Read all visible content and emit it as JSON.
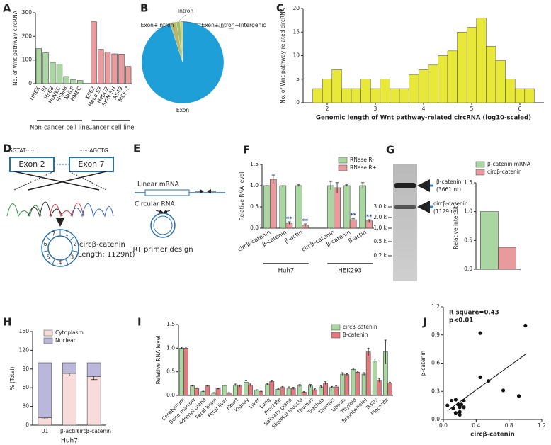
{
  "chart_data": [
    {
      "type": "bar",
      "label": "A",
      "ylabel": "No. of Wnt pathway circRNA",
      "categories": [
        "NHEK",
        "BJ",
        "Hs68",
        "HUVEC",
        "HSMM",
        "NHLF",
        "HMEC",
        null,
        "K562",
        "HeLa S3",
        "HepG2",
        "SK-N-SH",
        "A549",
        "MCF-7"
      ],
      "series": [
        {
          "color": "#a9d6a1",
          "values": [
            148,
            130,
            90,
            82,
            30,
            16,
            13,
            null,
            null,
            null,
            null,
            null,
            null,
            null
          ]
        },
        {
          "color": "#e89a9c",
          "values": [
            null,
            null,
            null,
            null,
            null,
            null,
            null,
            null,
            262,
            145,
            133,
            126,
            125,
            73
          ]
        }
      ],
      "groups": [
        "Non-cancer cell line",
        "Cancer cell line"
      ],
      "ylim": [
        0,
        300
      ],
      "yticks": [
        0,
        100,
        200,
        300
      ]
    },
    {
      "type": "pie",
      "label": "B",
      "categories": [
        "Exon",
        "Exon+Intron",
        "Intron",
        "Exon+Intron+Intergenic"
      ],
      "values": [
        95,
        2.5,
        1.5,
        1
      ],
      "colors": [
        "#1f9fd8",
        "#b9b46b",
        "#9cc36a",
        "#d9d27a"
      ]
    },
    {
      "type": "histogram",
      "label": "C",
      "xlabel": "Genomic length of Wnt pathway-related circRNA (log10-scaled)",
      "ylabel": "No. of Wnt pathway-related circRNA",
      "color": "#e8e83a",
      "bins": [
        1.7,
        1.9,
        2.1,
        2.3,
        2.5,
        2.7,
        2.9,
        3.1,
        3.3,
        3.5,
        3.7,
        3.9,
        4.1,
        4.3,
        4.5,
        4.7,
        4.9,
        5.1,
        5.3,
        5.5,
        5.7,
        5.9,
        6.1,
        6.3
      ],
      "values": [
        3,
        5,
        7,
        3,
        3,
        5,
        3,
        5,
        3,
        3,
        6,
        7,
        8,
        10,
        11,
        15,
        16,
        18,
        12,
        9,
        5,
        3,
        3
      ],
      "xlim": [
        1.5,
        6.5
      ],
      "xticks": [
        2,
        3,
        4,
        5,
        6
      ],
      "ylim": [
        0,
        20
      ],
      "yticks": [
        0,
        5,
        10,
        15,
        20
      ]
    },
    {
      "type": "bar",
      "label": "F",
      "ylabel": "Relative RNA level",
      "categories": [
        "circβ-catenin",
        "β-catenin",
        "β-actin",
        null,
        "circβ-catenin",
        "β-catenin",
        "β-actin"
      ],
      "series": [
        {
          "name": "RNase R-",
          "color": "#a9d6a1",
          "values": [
            1,
            1,
            1,
            null,
            1,
            1,
            1
          ],
          "errors": [
            0,
            0.04,
            0.02,
            null,
            0.1,
            0.02,
            0.07
          ]
        },
        {
          "name": "RNase R+",
          "color": "#e89a9c",
          "values": [
            1.15,
            0.12,
            0.07,
            null,
            0.95,
            0.2,
            0.17
          ],
          "errors": [
            0.1,
            0.03,
            0.03,
            null,
            0.12,
            0.03,
            0.03
          ],
          "sig": [
            null,
            "**",
            "**",
            null,
            null,
            "**",
            "**"
          ]
        }
      ],
      "groups": [
        "Huh7",
        "HEK293"
      ],
      "ylim": [
        0,
        1.5
      ],
      "yticks": [
        {
          "value": 0,
          "label": "0.0"
        },
        0.5,
        {
          "value": 1,
          "label": "1.0"
        },
        1.5
      ]
    },
    {
      "type": "bar",
      "label": "G",
      "ylabel": "Relative intensity",
      "categories": [
        null
      ],
      "series": [
        {
          "name": "β-catenin mRNA",
          "color": "#a9d6a1",
          "values": [
            1.0
          ]
        },
        {
          "name": "circβ-catenin",
          "color": "#e89a9c",
          "values": [
            0.38
          ]
        }
      ],
      "ylim": [
        0,
        1.5
      ],
      "yticks": [
        {
          "value": 0,
          "label": "0.0"
        },
        0.5,
        {
          "value": 1,
          "label": "1.0"
        },
        1.5
      ]
    },
    {
      "type": "bar",
      "label": "H",
      "stacked": true,
      "xlabel": "Huh7",
      "ylabel": "% (Total)",
      "categories": [
        "U1",
        "β-actin",
        "circβ-catenin"
      ],
      "series": [
        {
          "name": "Cytoplasm",
          "color": "#f8dcdc",
          "values": [
            12,
            83,
            78
          ],
          "errors": [
            2,
            4,
            5
          ]
        },
        {
          "name": "Nuclear",
          "color": "#bbb7da",
          "values": [
            88,
            17,
            22
          ]
        }
      ],
      "ylim": [
        0,
        150
      ],
      "yticks": [
        0,
        30,
        60,
        90,
        120,
        150
      ]
    },
    {
      "type": "bar",
      "label": "I",
      "ylabel": "Relative RNA level",
      "categories": [
        "Cerebellum",
        "Bone marrow",
        "Adrenal gland",
        "Fetal brain",
        "Fetal liver",
        "Heart",
        "Kidney",
        "Liver",
        "Lung",
        "Prostate",
        "Salivary gland",
        "Skeletal muscle",
        "Thymus",
        "Trachea",
        "Thymus",
        "Uterus",
        "Thyroid",
        "Brain(whole)",
        "Testis",
        "Placenta"
      ],
      "series": [
        {
          "name": "circβ-catenin",
          "color": "#a9d6a1",
          "values": [
            1.0,
            0.2,
            0.08,
            0.05,
            0.21,
            0.22,
            0.28,
            0.11,
            0.23,
            0.13,
            0.16,
            0.2,
            0.2,
            0.18,
            0.17,
            0.45,
            0.55,
            0.45,
            0.73,
            0.92
          ],
          "errors": [
            0.02,
            0.01,
            0.01,
            0.01,
            0.01,
            0.02,
            0.04,
            0.01,
            0.02,
            0.01,
            0.02,
            0.03,
            0.03,
            0.02,
            0.02,
            0.03,
            0.02,
            0.03,
            0.04,
            0.25
          ]
        },
        {
          "name": "β-catenin",
          "color": "#e07a7e",
          "values": [
            1.0,
            0.15,
            0.2,
            0.14,
            0.05,
            0.2,
            0.22,
            0.08,
            0.3,
            0.17,
            0.15,
            0.07,
            0.12,
            0.26,
            0.18,
            0.44,
            0.49,
            0.92,
            0.32,
            0.26
          ],
          "errors": [
            0.02,
            0.01,
            0.01,
            0.01,
            0.01,
            0.02,
            0.02,
            0.01,
            0.02,
            0.02,
            0.02,
            0.01,
            0.02,
            0.03,
            0.02,
            0.02,
            0.02,
            0.08,
            0.04,
            0.02
          ]
        }
      ],
      "ylim": [
        0,
        1.5
      ],
      "yticks": [
        {
          "value": 0,
          "label": "0.0"
        },
        0.5,
        {
          "value": 1,
          "label": "1.0"
        },
        1.5
      ]
    },
    {
      "type": "scatter",
      "label": "J",
      "xlabel": "circβ-catenin",
      "ylabel": "β-catenin",
      "annotations": [
        "R square=0.43",
        "p<0.01"
      ],
      "trendline": true,
      "x": [
        1.0,
        0.45,
        0.45,
        0.55,
        0.73,
        0.92,
        0.25,
        0.22,
        0.18,
        0.15,
        0.2,
        0.12,
        0.1,
        0.05,
        0.15,
        0.2,
        0.2,
        0.25
      ],
      "values": [
        1.0,
        0.92,
        0.45,
        0.41,
        0.31,
        0.25,
        0.2,
        0.16,
        0.16,
        0.21,
        0.13,
        0.12,
        0.2,
        0.15,
        0.07,
        0.05,
        0.08,
        0.13
      ],
      "xlim": [
        0,
        1.2
      ],
      "xticks": [
        {
          "value": 0,
          "label": "0.0"
        },
        0.4,
        0.8,
        1.2
      ],
      "ylim": [
        0,
        1.2
      ],
      "yticks": [
        {
          "value": 0,
          "label": "0.0"
        },
        0.3,
        0.6,
        0.9,
        1.2
      ]
    }
  ],
  "diagrams": {
    "D": {
      "label": "D",
      "seq_left": "GGTAT······",
      "seq_right": "······AGCTG",
      "exon_left": "Exon 2",
      "exon_right": "Exon 7",
      "circ_name": "circβ-catenin",
      "circ_length": "(Length: 1129nt)",
      "segments": [
        "1",
        "2",
        "3",
        "4",
        "5",
        "6",
        "7"
      ]
    },
    "E": {
      "label": "E",
      "linear": "Linear mRNA",
      "circular": "Circular RNA",
      "caption": "RT primer design"
    },
    "G": {
      "markers": [
        "3.0 k",
        "2.0 k",
        "1.0 k",
        "0.5 k",
        "0.2 k"
      ],
      "bands": [
        {
          "name": "β-catenin",
          "size": "(3661 nt)"
        },
        {
          "name": "circβ-catenin",
          "size": "(1129 nt)"
        }
      ]
    }
  }
}
